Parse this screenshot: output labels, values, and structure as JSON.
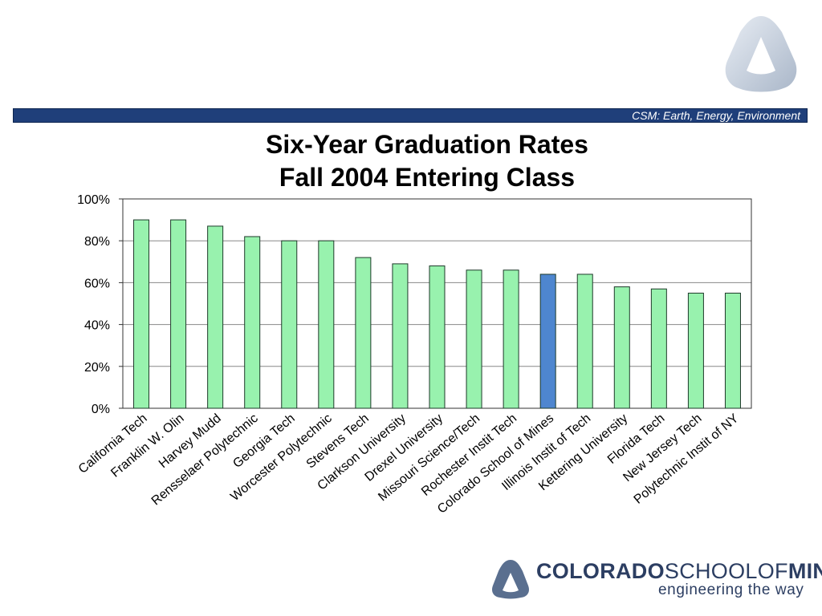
{
  "header": {
    "tagline": "CSM: Earth, Energy, Environment"
  },
  "logo": {
    "name_bold_1": "COLORADO",
    "name_light": "SCHOOLOF",
    "name_bold_2": "MINES",
    "tagline": "engineering the way",
    "trademark": "."
  },
  "colors": {
    "bar": "#98f2ae",
    "highlight": "#4e86cf",
    "banner": "#1f3f7a"
  },
  "chart_data": {
    "type": "bar",
    "title": "Six-Year Graduation Rates",
    "subtitle": "Fall 2004 Entering Class",
    "xlabel": "",
    "ylabel": "",
    "ylim": [
      0,
      100
    ],
    "yticks": [
      "0%",
      "20%",
      "40%",
      "60%",
      "80%",
      "100%"
    ],
    "grid": true,
    "legend": "none",
    "highlight_category": "Colorado School of Mines",
    "categories": [
      "California Tech",
      "Franklin W. Olin",
      "Harvey Mudd",
      "Rensselaer Polytechnic",
      "Georgia Tech",
      "Worcester Polytechnic",
      "Stevens Tech",
      "Clarkson University",
      "Drexel University",
      "Missouri Science/Tech",
      "Rochester Instit Tech",
      "Colorado School of Mines",
      "Illinois Instit of Tech",
      "Kettering University",
      "Florida Tech",
      "New Jersey Tech",
      "Polytechnic Instit of NY"
    ],
    "values": [
      90,
      90,
      87,
      82,
      80,
      80,
      72,
      69,
      68,
      66,
      66,
      64,
      64,
      58,
      57,
      55,
      55
    ]
  }
}
